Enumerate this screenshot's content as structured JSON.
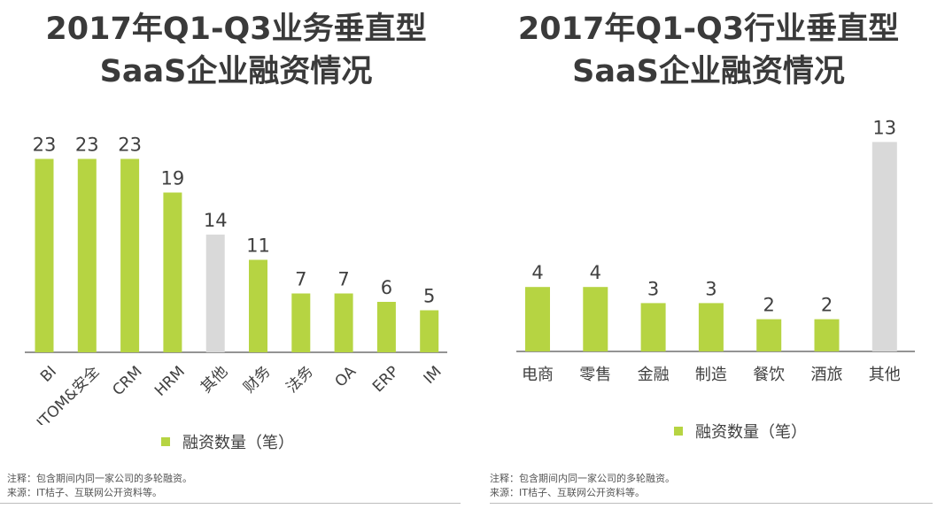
{
  "colors": {
    "bar": "#b6d442",
    "other_bar": "#d9d9d9",
    "axis": "#555555",
    "text": "#404040"
  },
  "left": {
    "title_line1": "2017年Q1-Q3业务垂直型",
    "title_line2": "SaaS企业融资情况",
    "legend": "融资数量（笔）",
    "note": "注释：包含期间内同一家公司的多轮融资。",
    "source": "来源：IT桔子、互联网公开资料等。"
  },
  "right": {
    "title_line1": "2017年Q1-Q3行业垂直型",
    "title_line2": "SaaS企业融资情况",
    "legend": "融资数量（笔）",
    "note": "注释：包含期间内同一家公司的多轮融资。",
    "source": "来源：IT桔子、互联网公开资料等。"
  },
  "chart_data": [
    {
      "type": "bar",
      "title": "2017年Q1-Q3业务垂直型SaaS企业融资情况",
      "categories": [
        "BI",
        "ITOM&安全",
        "CRM",
        "HRM",
        "其他",
        "财务",
        "法务",
        "OA",
        "ERP",
        "IM"
      ],
      "series": [
        {
          "name": "融资数量（笔）",
          "values": [
            23,
            23,
            23,
            19,
            14,
            11,
            7,
            7,
            6,
            5
          ]
        }
      ],
      "highlight_gray": [
        "其他"
      ],
      "legend_position": "bottom"
    },
    {
      "type": "bar",
      "title": "2017年Q1-Q3行业垂直型SaaS企业融资情况",
      "categories": [
        "电商",
        "零售",
        "金融",
        "制造",
        "餐饮",
        "酒旅",
        "其他"
      ],
      "series": [
        {
          "name": "融资数量（笔）",
          "values": [
            4,
            4,
            3,
            3,
            2,
            2,
            13
          ]
        }
      ],
      "highlight_gray": [
        "其他"
      ],
      "legend_position": "bottom"
    }
  ]
}
